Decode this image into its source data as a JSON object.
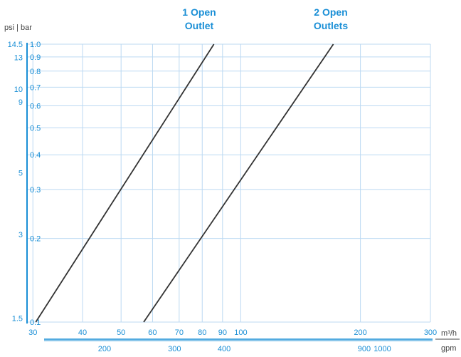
{
  "chart_data": {
    "type": "line",
    "scale": {
      "x": "log",
      "y": "log"
    },
    "grid": true,
    "legend": "none",
    "axes": {
      "y_left_unit": "psi | bar",
      "y_bar_range": [
        0.1,
        1.0
      ],
      "x_primary_unit": "m³/h",
      "x_primary_range": [
        29,
        300
      ],
      "x_secondary_unit": "gpm"
    },
    "ticks": {
      "bar": [
        "0.1",
        "0.2",
        "0.3",
        "0.4",
        "0.5",
        "0.6",
        "0.7",
        "0.8",
        "0.9",
        "1.0"
      ],
      "bar_values": [
        0.1,
        0.2,
        0.3,
        0.4,
        0.5,
        0.6,
        0.7,
        0.8,
        0.9,
        1.0
      ],
      "psi": [
        "1.5",
        "3",
        "5",
        "9",
        "10",
        "13",
        "14.5"
      ],
      "psi_values": [
        1.5,
        3,
        5,
        9,
        10,
        13,
        14.5
      ],
      "m3h": [
        "30",
        "40",
        "50",
        "60",
        "70",
        "80",
        "90",
        "100",
        "200",
        "300"
      ],
      "m3h_values": [
        30,
        40,
        50,
        60,
        70,
        80,
        90,
        100,
        200,
        300
      ],
      "gpm": [
        "200",
        "300",
        "400",
        "900",
        "1000"
      ],
      "gpm_values": [
        200,
        300,
        400,
        900,
        1000
      ]
    },
    "series": [
      {
        "name": "1 Open Outlet",
        "label_lines": [
          "1 Open",
          "Outlet"
        ],
        "x": [
          30.5,
          85.6
        ],
        "y": [
          0.1,
          1.0
        ]
      },
      {
        "name": "2 Open Outlets",
        "label_lines": [
          "2 Open",
          "Outlets"
        ],
        "x": [
          57,
          171
        ],
        "y": [
          0.1,
          1.0
        ]
      }
    ],
    "colors": {
      "axis": "#1a8fd6",
      "grid": "#bcd9f2",
      "line": "#333333",
      "text": "#444444"
    }
  }
}
